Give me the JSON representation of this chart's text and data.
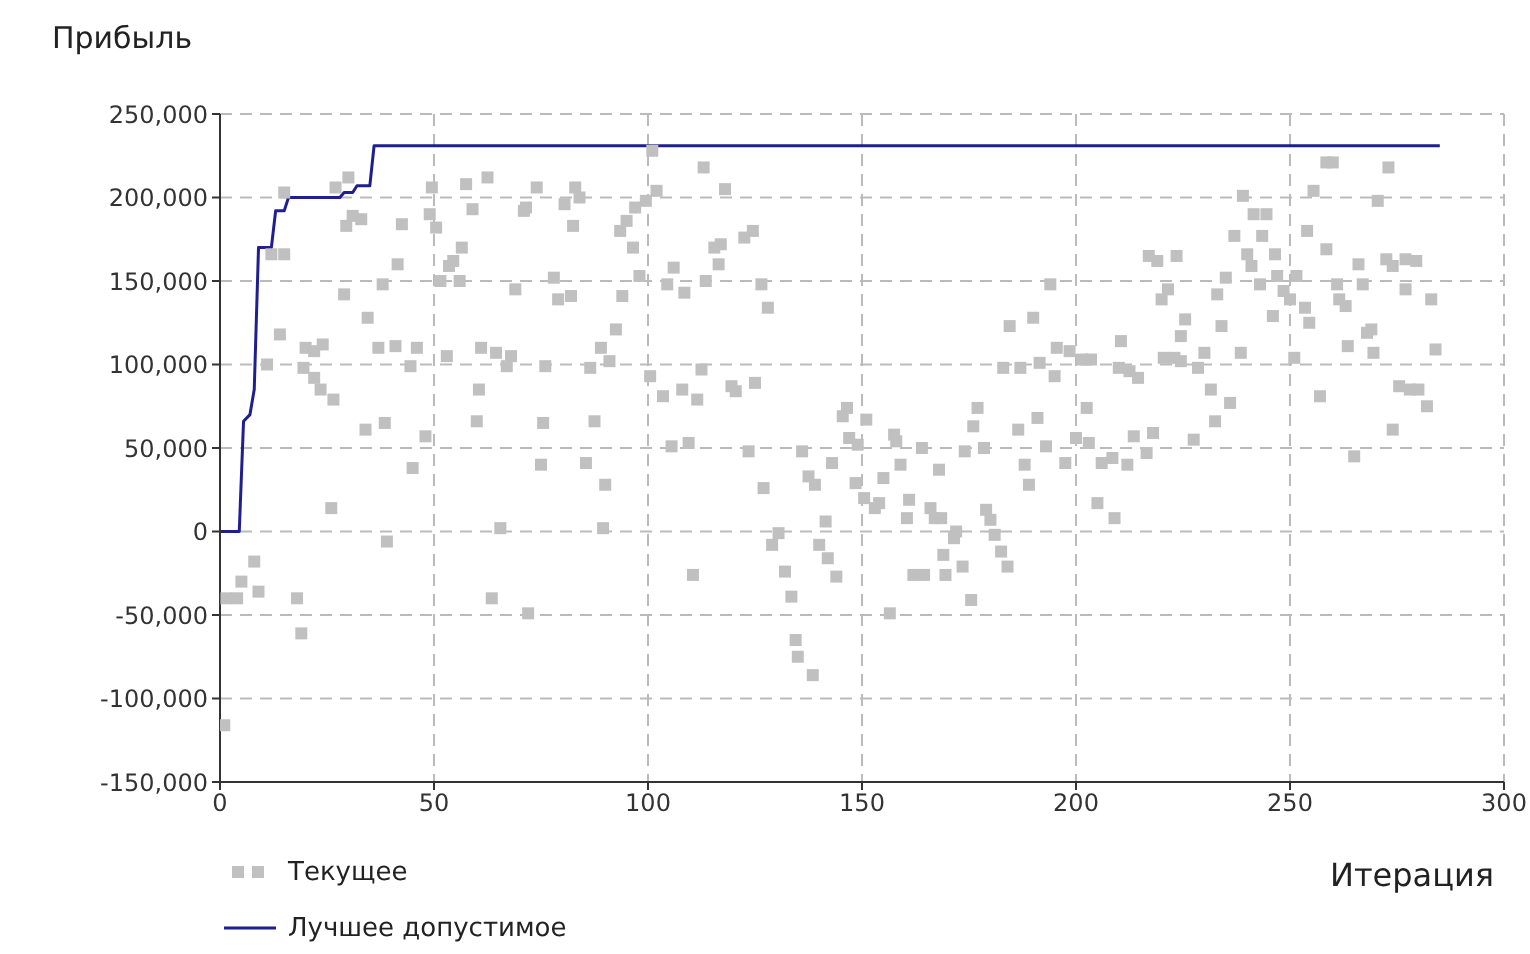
{
  "chart_data": {
    "type": "scatter",
    "ylabel": "Прибыль",
    "xlabel": "Итерация",
    "xlim": [
      0,
      300
    ],
    "xticks": [
      0,
      50,
      100,
      150,
      200,
      250,
      300
    ],
    "ylim": [
      -150000,
      250000
    ],
    "yticks": [
      {
        "value": -150000,
        "label": "-150,000"
      },
      {
        "value": -100000,
        "label": "-100,000"
      },
      {
        "value": -50000,
        "label": "-50,000"
      },
      0,
      {
        "value": 50000,
        "label": "50,000"
      },
      {
        "value": 100000,
        "label": "100,000"
      },
      {
        "value": 150000,
        "label": "150,000"
      },
      {
        "value": 200000,
        "label": "200,000"
      },
      {
        "value": 250000,
        "label": "250,000"
      }
    ],
    "grid": true,
    "legend": "bottom left",
    "series": [
      {
        "name": "Текущее",
        "marker": "square",
        "color": "#c0c0c0",
        "x": [
          1,
          1.5,
          4,
          5,
          8,
          9,
          18,
          19,
          26,
          11,
          14,
          15,
          12,
          15,
          20,
          22,
          24,
          19.5,
          22,
          23.5,
          26.5,
          29,
          29.5,
          31,
          33,
          27,
          30,
          34.5,
          34,
          38.5,
          37,
          38,
          41.5,
          42.5,
          39,
          41,
          44.5,
          45,
          46,
          48,
          49,
          49.5,
          50.5,
          51.5,
          53.5,
          54.5,
          56,
          53,
          56.5,
          57.5,
          59,
          60.5,
          60,
          61,
          62.5,
          63.5,
          64.5,
          68,
          67,
          65.5,
          69,
          71,
          71.5,
          72,
          74,
          75,
          75.5,
          76,
          78,
          79,
          82,
          80.5,
          82.5,
          83,
          84,
          85.5,
          86.5,
          87.5,
          89,
          89.5,
          90,
          91,
          92.5,
          94,
          93.5,
          95,
          96.5,
          97,
          101,
          99.5,
          102,
          98,
          104.5,
          106,
          108.5,
          113.5,
          113,
          118,
          115.5,
          117,
          116.5,
          122.5,
          124.5,
          126.5,
          128,
          100.5,
          103.5,
          108,
          111.5,
          112.5,
          119.5,
          120.5,
          125,
          105.5,
          109.5,
          123.5,
          110.5,
          127,
          130.5,
          129,
          132,
          133.5,
          134.5,
          135,
          138.5,
          136,
          137.5,
          139,
          141.5,
          140,
          142,
          144,
          143,
          145.5,
          146.5,
          147,
          149,
          151,
          148.5,
          150.5,
          153,
          154,
          155,
          156.5,
          157.5,
          158,
          159,
          161,
          160.5,
          164,
          162,
          164.5,
          166,
          167,
          168.5,
          168,
          169.5,
          169,
          171.5,
          172,
          173.5,
          175.5,
          174,
          178.5,
          176,
          177,
          179,
          180,
          181,
          182.5,
          184,
          186.5,
          188,
          189,
          191,
          193,
          183,
          187,
          191.5,
          184.5,
          190,
          195,
          195.5,
          194,
          198.5,
          201.5,
          203.5,
          200,
          203,
          197.5,
          202.5,
          205,
          209,
          206,
          208.5,
          212,
          213.5,
          216.5,
          218,
          210.5,
          210,
          212.5,
          214.5,
          217,
          219,
          223.5,
          221.5,
          220,
          220.5,
          223,
          224.5,
          225.5,
          224.5,
          227.5,
          228.5,
          230,
          231.5,
          232.5,
          236,
          233,
          234,
          235,
          237,
          238.5,
          239,
          240,
          241,
          241.5,
          244.5,
          243,
          243.5,
          246.5,
          246,
          247,
          248.5,
          250,
          251.5,
          251,
          253.5,
          254.5,
          254,
          255.5,
          257,
          258.5,
          258.5,
          260,
          261,
          261.5,
          263,
          263.5,
          265,
          266,
          267,
          268,
          269,
          269.5,
          270.5,
          272.5,
          274,
          277,
          279.5,
          273,
          274,
          275.5,
          278,
          280,
          277,
          282,
          283,
          284
        ],
        "values": [
          -116000,
          -40000,
          -40000,
          -30000,
          -18000,
          -36000,
          -40000,
          -61000,
          14000,
          100000,
          118000,
          166000,
          166000,
          203000,
          110000,
          108000,
          112000,
          98000,
          92000,
          85000,
          79000,
          142000,
          183000,
          189000,
          187000,
          206000,
          212000,
          128000,
          61000,
          65000,
          110000,
          148000,
          160000,
          184000,
          -6000,
          111000,
          99000,
          38000,
          110000,
          57000,
          190000,
          206000,
          182000,
          150000,
          159000,
          162000,
          150000,
          105000,
          170000,
          208000,
          193000,
          85000,
          66000,
          110000,
          212000,
          -40000,
          107000,
          105000,
          99000,
          2000,
          145000,
          192000,
          194000,
          -49000,
          206000,
          40000,
          65000,
          99000,
          152000,
          139000,
          141000,
          196000,
          183000,
          206000,
          200000,
          41000,
          98000,
          66000,
          110000,
          2000,
          28000,
          102000,
          121000,
          141000,
          180000,
          186000,
          170000,
          194000,
          228000,
          198000,
          204000,
          153000,
          148000,
          158000,
          143000,
          150000,
          218000,
          205000,
          170000,
          172000,
          160000,
          176000,
          180000,
          148000,
          134000,
          93000,
          81000,
          85000,
          79000,
          97000,
          87000,
          84000,
          89000,
          51000,
          53000,
          48000,
          -26000,
          26000,
          -1000,
          -8000,
          -24000,
          -39000,
          -65000,
          -75000,
          -86000,
          48000,
          33000,
          28000,
          6000,
          -8000,
          -16000,
          -27000,
          41000,
          69000,
          74000,
          56000,
          52000,
          67000,
          29000,
          20000,
          14000,
          17000,
          32000,
          -49000,
          58000,
          54000,
          40000,
          19000,
          8000,
          50000,
          -26000,
          -26000,
          14000,
          8000,
          8000,
          37000,
          -26000,
          -14000,
          -4000,
          0,
          -21000,
          -41000,
          48000,
          50000,
          63000,
          74000,
          13000,
          7000,
          -2000,
          -12000,
          -21000,
          61000,
          40000,
          28000,
          68000,
          51000,
          98000,
          98000,
          101000,
          123000,
          128000,
          93000,
          110000,
          148000,
          108000,
          103000,
          103000,
          56000,
          53000,
          41000,
          74000,
          17000,
          8000,
          41000,
          44000,
          40000,
          57000,
          47000,
          59000,
          114000,
          98000,
          96000,
          92000,
          165000,
          162000,
          165000,
          145000,
          139000,
          104000,
          104000,
          102000,
          127000,
          117000,
          55000,
          98000,
          107000,
          85000,
          66000,
          77000,
          142000,
          123000,
          152000,
          177000,
          107000,
          201000,
          166000,
          159000,
          190000,
          190000,
          148000,
          177000,
          166000,
          129000,
          153000,
          144000,
          139000,
          153000,
          104000,
          134000,
          125000,
          180000,
          204000,
          81000,
          169000,
          221000,
          221000,
          148000,
          139000,
          135000,
          111000,
          45000,
          160000,
          148000,
          119000,
          121000,
          107000,
          198000,
          163000,
          159000,
          163000,
          162000,
          218000,
          61000,
          87000,
          85000,
          85000,
          145000,
          75000,
          139000,
          109000
        ]
      },
      {
        "name": "Лучшее допустимое",
        "type": "line",
        "marker": "none",
        "color": "#1f1f8f",
        "x": [
          0,
          4.5,
          5.5,
          7,
          8,
          9,
          12,
          13,
          15,
          16,
          28,
          29,
          31,
          32,
          35,
          36,
          285
        ],
        "values": [
          0,
          0,
          66000,
          70000,
          85000,
          170000,
          170000,
          192000,
          192000,
          200000,
          200000,
          203000,
          203000,
          207000,
          207000,
          231000,
          231000
        ]
      }
    ]
  }
}
